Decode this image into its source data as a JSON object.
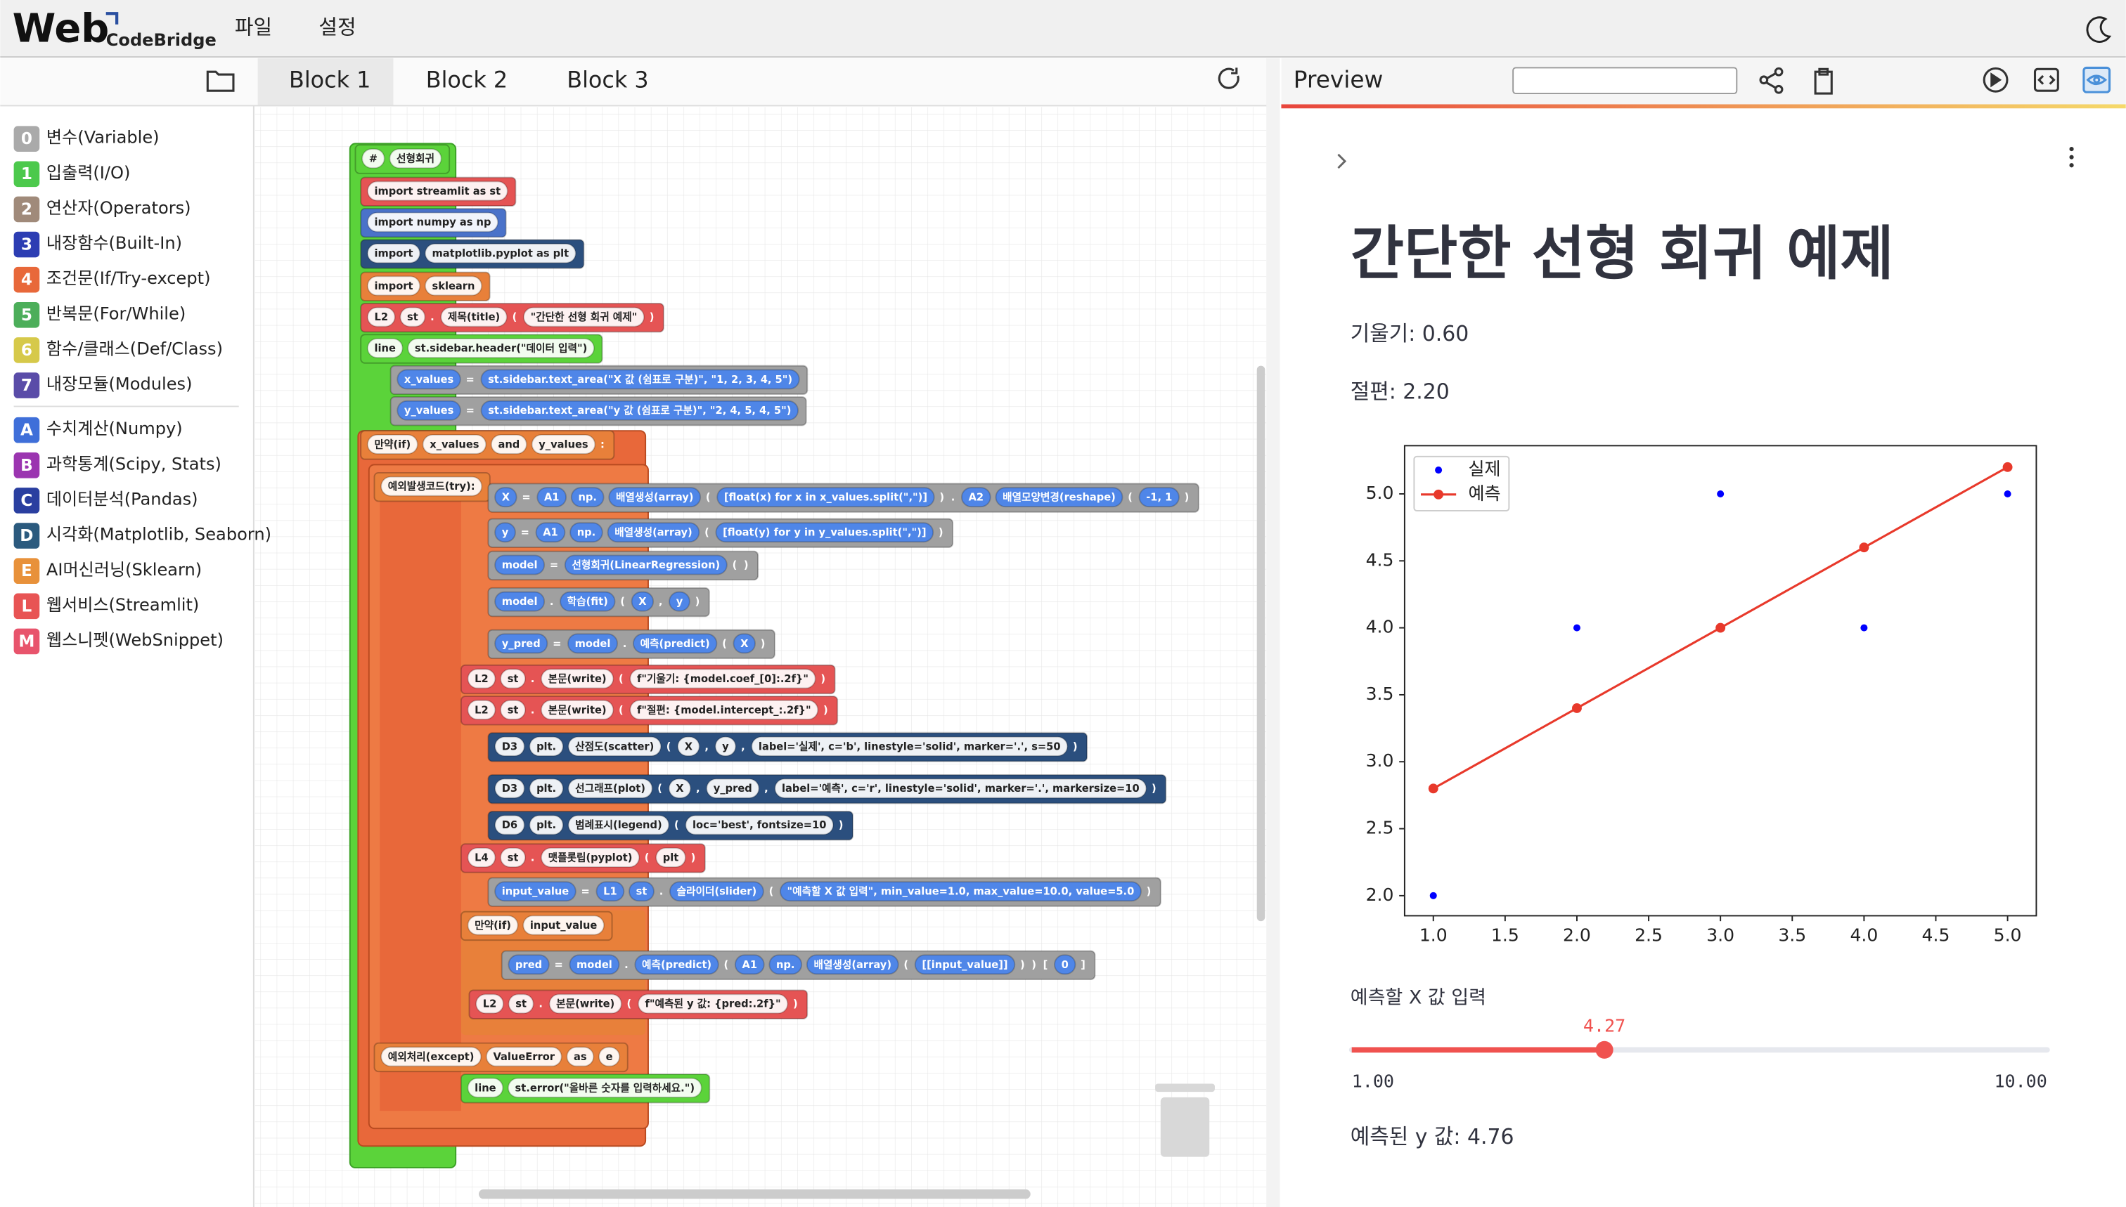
{
  "header": {
    "logo": "Web",
    "logo_sub": "CodeBridge",
    "menu": [
      "파일",
      "설정"
    ]
  },
  "tabs": [
    "Block 1",
    "Block 2",
    "Block 3"
  ],
  "categories": [
    {
      "key": "0",
      "label": "변수(Variable)"
    },
    {
      "key": "1",
      "label": "입출력(I/O)"
    },
    {
      "key": "2",
      "label": "연산자(Operators)"
    },
    {
      "key": "3",
      "label": "내장함수(Built-In)"
    },
    {
      "key": "4",
      "label": "조건문(If/Try-except)"
    },
    {
      "key": "5",
      "label": "반복문(For/While)"
    },
    {
      "key": "6",
      "label": "함수/클래스(Def/Class)"
    },
    {
      "key": "7",
      "label": "내장모듈(Modules)"
    },
    {
      "key": "A",
      "label": "수치계산(Numpy)"
    },
    {
      "key": "B",
      "label": "과학통계(Scipy, Stats)"
    },
    {
      "key": "C",
      "label": "데이터분석(Pandas)"
    },
    {
      "key": "D",
      "label": "시각화(Matplotlib, Seaborn)"
    },
    {
      "key": "E",
      "label": "AI머신러닝(Sklearn)"
    },
    {
      "key": "L",
      "label": "웹서비스(Streamlit)"
    },
    {
      "key": "M",
      "label": "웹스니펫(WebSnippet)"
    }
  ],
  "blocks": [
    [
      "#",
      "선형회귀"
    ],
    [
      "import streamlit as st"
    ],
    [
      "import numpy as np"
    ],
    [
      "import",
      "matplotlib.pyplot as plt"
    ],
    [
      "import",
      "sklearn"
    ],
    [
      "L2",
      "st",
      ".",
      "제목(title)",
      "(",
      "\"간단한 선형 회귀 예제\"",
      ")"
    ],
    [
      "line",
      "st.sidebar.header(\"데이터 입력\")"
    ],
    [
      "x_values",
      "=",
      "st.sidebar.text_area(\"X 값 (쉼표로 구분)\", \"1, 2, 3, 4, 5\")"
    ],
    [
      "y_values",
      "=",
      "st.sidebar.text_area(\"y 값 (쉼표로 구분)\", \"2, 4, 5, 4, 5\")"
    ],
    [
      "만약(if)",
      "x_values",
      "and",
      "y_values",
      ":"
    ],
    [
      "예외발생코드(try):"
    ],
    [
      "X",
      "=",
      "A1",
      "np.",
      "배열생성(array)",
      "(",
      "[float(x) for x in x_values.split(\",\")]",
      ")",
      ".",
      "A2",
      "배열모양변경(reshape)",
      "(",
      "-1, 1",
      ")"
    ],
    [
      "y",
      "=",
      "A1",
      "np.",
      "배열생성(array)",
      "(",
      "[float(y) for y in y_values.split(\",\")]",
      ")"
    ],
    [
      "model",
      "=",
      "선형회귀(LinearRegression)",
      "(",
      ")"
    ],
    [
      "model",
      ".",
      "학습(fit)",
      "(",
      "X",
      ",",
      "y",
      ")"
    ],
    [
      "y_pred",
      "=",
      "model",
      ".",
      "예측(predict)",
      "(",
      "X",
      ")"
    ],
    [
      "L2",
      "st",
      ".",
      "본문(write)",
      "(",
      "f\"기울기: {model.coef_[0]:.2f}\"",
      ")"
    ],
    [
      "L2",
      "st",
      ".",
      "본문(write)",
      "(",
      "f\"절편: {model.intercept_:.2f}\"",
      ")"
    ],
    [
      "D3",
      "plt.",
      "산점도(scatter)",
      "(",
      "X",
      ",",
      "y",
      ",",
      "label='실제', c='b', linestyle='solid', marker='.', s=50",
      ")"
    ],
    [
      "D3",
      "plt.",
      "선그래프(plot)",
      "(",
      "X",
      ",",
      "y_pred",
      ",",
      "label='예측', c='r', linestyle='solid', marker='.', markersize=10",
      ")"
    ],
    [
      "D6",
      "plt.",
      "범례표시(legend)",
      "(",
      "loc='best', fontsize=10",
      ")"
    ],
    [
      "L4",
      "st",
      ".",
      "맷플롯립(pyplot)",
      "(",
      "plt",
      ")"
    ],
    [
      "input_value",
      "=",
      "L1",
      "st",
      ".",
      "슬라이더(slider)",
      "(",
      "\"예측할 X 값 입력\", min_value=1.0, max_value=10.0, value=5.0",
      ")"
    ],
    [
      "만약(if)",
      "input_value"
    ],
    [
      "pred",
      "=",
      "model",
      ".",
      "예측(predict)",
      "(",
      "A1",
      "np.",
      "배열생성(array)",
      "(",
      "[[input_value]]",
      ")",
      ")",
      "[",
      "0",
      "]"
    ],
    [
      "L2",
      "st",
      ".",
      "본문(write)",
      "(",
      "f\"예측된 y 값: {pred:.2f}\"",
      ")"
    ],
    [
      "예외처리(except)",
      "ValueError",
      "as",
      "e"
    ],
    [
      "line",
      "st.error(\"올바른 숫자를 입력하세요.\")"
    ]
  ],
  "preview": {
    "title": "Preview",
    "heading": "간단한 선형 회귀 예제",
    "slope": "기울기: 0.60",
    "intercept": "절편: 2.20",
    "slider_label": "예측할 X 값 입력",
    "slider": {
      "value": 4.27,
      "min": {
        "value": 1,
        "label": "1.00"
      },
      "max": {
        "value": 10,
        "label": "10.00"
      }
    },
    "result": "예측된 y 값: 4.76"
  },
  "chart_data": {
    "type": "line",
    "x": [
      1,
      2,
      3,
      4,
      5
    ],
    "series": [
      {
        "name": "실제",
        "type": "scatter",
        "color": "#0000ff",
        "values": [
          2,
          4,
          5,
          4,
          5
        ]
      },
      {
        "name": "예측",
        "color": "#e8392b",
        "values": [
          2.8,
          3.4,
          4.0,
          4.6,
          5.2
        ]
      }
    ],
    "xlim": [
      0.8,
      5.2
    ],
    "ylim": [
      1.85,
      5.36
    ],
    "xticks": [
      {
        "value": 1,
        "label": "1.0"
      },
      1.5,
      {
        "value": 2,
        "label": "2.0"
      },
      2.5,
      {
        "value": 3,
        "label": "3.0"
      },
      3.5,
      {
        "value": 4,
        "label": "4.0"
      },
      4.5,
      {
        "value": 5,
        "label": "5.0"
      }
    ],
    "yticks": [
      {
        "value": 2,
        "label": "2.0"
      },
      2.5,
      {
        "value": 3,
        "label": "3.0"
      },
      3.5,
      {
        "value": 4,
        "label": "4.0"
      },
      4.5,
      {
        "value": 5,
        "label": "5.0"
      }
    ],
    "legend": "upper left"
  }
}
